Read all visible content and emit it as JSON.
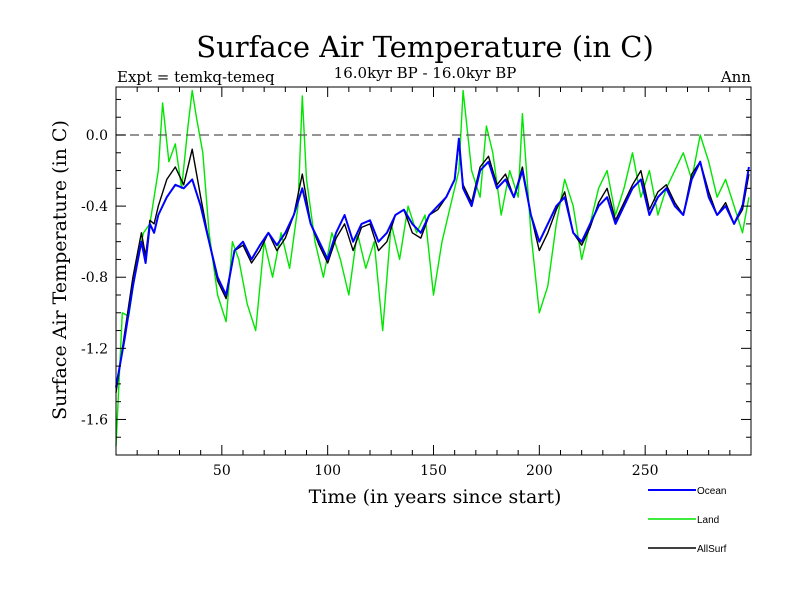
{
  "chart_data": {
    "type": "line",
    "title": "Surface Air Temperature (in C)",
    "subtitle": "16.0kyr BP - 16.0kyr BP",
    "expt_label": "Expt = temkq-temeq",
    "period_label": "Ann",
    "xlabel": "Time (in years since start)",
    "ylabel": "Surface Air Temperature (in C)",
    "xlim": [
      0,
      300
    ],
    "ylim": [
      -1.8,
      0.27
    ],
    "x_ticks": [
      50,
      100,
      150,
      200,
      250
    ],
    "x_tick_labels": [
      "50",
      "100",
      "150",
      "200",
      "250"
    ],
    "y_ticks": [
      -1.6,
      -1.2,
      -0.8,
      -0.4,
      0.0
    ],
    "y_tick_labels": [
      "-1.6",
      "-1.2",
      "-0.8",
      "-0.4",
      "0.0"
    ],
    "reference_line": 0.0,
    "legend_position": "bottom-right",
    "series": [
      {
        "name": "Ocean",
        "color": "#0000ff",
        "x": [
          0,
          4,
          8,
          12,
          14,
          16,
          18,
          20,
          24,
          28,
          32,
          36,
          40,
          44,
          48,
          52,
          56,
          60,
          64,
          68,
          72,
          76,
          80,
          84,
          88,
          92,
          96,
          100,
          104,
          108,
          112,
          116,
          120,
          124,
          128,
          132,
          136,
          140,
          144,
          148,
          152,
          156,
          160,
          162,
          164,
          168,
          172,
          176,
          180,
          184,
          188,
          192,
          196,
          200,
          204,
          208,
          212,
          216,
          220,
          224,
          228,
          232,
          236,
          240,
          244,
          248,
          252,
          256,
          260,
          264,
          268,
          272,
          276,
          280,
          284,
          288,
          292,
          296,
          299
        ],
        "values": [
          -1.42,
          -1.15,
          -0.85,
          -0.6,
          -0.72,
          -0.5,
          -0.55,
          -0.45,
          -0.35,
          -0.28,
          -0.3,
          -0.25,
          -0.4,
          -0.6,
          -0.8,
          -0.9,
          -0.65,
          -0.6,
          -0.7,
          -0.62,
          -0.55,
          -0.62,
          -0.55,
          -0.45,
          -0.3,
          -0.5,
          -0.6,
          -0.7,
          -0.55,
          -0.45,
          -0.6,
          -0.5,
          -0.48,
          -0.6,
          -0.55,
          -0.45,
          -0.42,
          -0.5,
          -0.55,
          -0.45,
          -0.4,
          -0.35,
          -0.25,
          -0.02,
          -0.3,
          -0.4,
          -0.2,
          -0.15,
          -0.3,
          -0.25,
          -0.35,
          -0.2,
          -0.45,
          -0.6,
          -0.5,
          -0.4,
          -0.35,
          -0.55,
          -0.6,
          -0.5,
          -0.4,
          -0.35,
          -0.5,
          -0.4,
          -0.3,
          -0.25,
          -0.45,
          -0.35,
          -0.3,
          -0.4,
          -0.45,
          -0.25,
          -0.15,
          -0.35,
          -0.45,
          -0.4,
          -0.5,
          -0.4,
          -0.18
        ]
      },
      {
        "name": "Land",
        "color": "#00e600",
        "x": [
          0,
          3,
          6,
          10,
          13,
          16,
          18,
          20,
          22,
          25,
          28,
          31,
          34,
          36,
          38,
          41,
          44,
          48,
          52,
          55,
          58,
          62,
          66,
          70,
          74,
          78,
          82,
          86,
          88,
          90,
          94,
          98,
          102,
          106,
          110,
          114,
          118,
          122,
          126,
          130,
          134,
          138,
          142,
          146,
          150,
          154,
          158,
          162,
          164,
          168,
          172,
          175,
          178,
          182,
          186,
          190,
          192,
          196,
          200,
          204,
          208,
          212,
          216,
          220,
          224,
          228,
          232,
          236,
          240,
          244,
          248,
          252,
          256,
          260,
          264,
          268,
          272,
          276,
          280,
          284,
          288,
          292,
          296,
          299
        ],
        "values": [
          -1.75,
          -1.0,
          -1.02,
          -0.7,
          -0.55,
          -0.5,
          -0.35,
          -0.2,
          0.18,
          -0.15,
          -0.05,
          -0.3,
          0.05,
          0.25,
          0.1,
          -0.1,
          -0.55,
          -0.9,
          -1.05,
          -0.6,
          -0.7,
          -0.95,
          -1.1,
          -0.6,
          -0.8,
          -0.55,
          -0.75,
          -0.4,
          0.22,
          -0.25,
          -0.6,
          -0.8,
          -0.55,
          -0.7,
          -0.9,
          -0.55,
          -0.75,
          -0.6,
          -1.1,
          -0.5,
          -0.7,
          -0.4,
          -0.55,
          -0.45,
          -0.9,
          -0.6,
          -0.4,
          -0.2,
          0.25,
          -0.2,
          -0.35,
          0.05,
          -0.1,
          -0.45,
          -0.2,
          -0.35,
          0.12,
          -0.55,
          -1.0,
          -0.85,
          -0.5,
          -0.25,
          -0.4,
          -0.7,
          -0.5,
          -0.3,
          -0.2,
          -0.45,
          -0.3,
          -0.1,
          -0.35,
          -0.2,
          -0.45,
          -0.3,
          -0.2,
          -0.1,
          -0.25,
          0.0,
          -0.15,
          -0.35,
          -0.25,
          -0.4,
          -0.55,
          -0.35
        ]
      },
      {
        "name": "AllSurf",
        "color": "#000000",
        "x": [
          0,
          4,
          8,
          12,
          14,
          16,
          18,
          20,
          24,
          28,
          32,
          36,
          40,
          44,
          48,
          52,
          56,
          60,
          64,
          68,
          72,
          76,
          80,
          84,
          88,
          92,
          96,
          100,
          104,
          108,
          112,
          116,
          120,
          124,
          128,
          132,
          136,
          140,
          144,
          148,
          152,
          156,
          160,
          162,
          164,
          168,
          172,
          176,
          180,
          184,
          188,
          192,
          196,
          200,
          204,
          208,
          212,
          216,
          220,
          224,
          228,
          232,
          236,
          240,
          244,
          248,
          252,
          256,
          260,
          264,
          268,
          272,
          276,
          280,
          284,
          288,
          292,
          296,
          299
        ],
        "values": [
          -1.45,
          -1.12,
          -0.8,
          -0.55,
          -0.68,
          -0.48,
          -0.5,
          -0.4,
          -0.25,
          -0.18,
          -0.28,
          -0.08,
          -0.35,
          -0.6,
          -0.82,
          -0.92,
          -0.65,
          -0.62,
          -0.72,
          -0.65,
          -0.55,
          -0.65,
          -0.58,
          -0.45,
          -0.22,
          -0.5,
          -0.62,
          -0.72,
          -0.58,
          -0.5,
          -0.65,
          -0.52,
          -0.5,
          -0.65,
          -0.6,
          -0.45,
          -0.42,
          -0.55,
          -0.58,
          -0.45,
          -0.42,
          -0.35,
          -0.25,
          -0.05,
          -0.28,
          -0.38,
          -0.18,
          -0.12,
          -0.28,
          -0.22,
          -0.35,
          -0.18,
          -0.45,
          -0.65,
          -0.55,
          -0.42,
          -0.32,
          -0.55,
          -0.62,
          -0.52,
          -0.38,
          -0.3,
          -0.48,
          -0.38,
          -0.28,
          -0.2,
          -0.42,
          -0.32,
          -0.28,
          -0.38,
          -0.45,
          -0.22,
          -0.15,
          -0.32,
          -0.45,
          -0.38,
          -0.5,
          -0.42,
          -0.22
        ]
      }
    ]
  }
}
